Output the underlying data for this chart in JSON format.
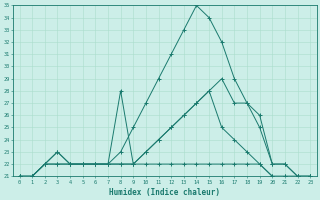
{
  "xlabel": "Humidex (Indice chaleur)",
  "bg_color": "#cceee8",
  "grid_color": "#aaddcc",
  "line_color": "#1a7a6e",
  "xlim": [
    -0.5,
    23.5
  ],
  "ylim": [
    21,
    35
  ],
  "xticks": [
    0,
    1,
    2,
    3,
    4,
    5,
    6,
    7,
    8,
    9,
    10,
    11,
    12,
    13,
    14,
    15,
    16,
    17,
    18,
    19,
    20,
    21,
    22,
    23
  ],
  "yticks": [
    21,
    22,
    23,
    24,
    25,
    26,
    27,
    28,
    29,
    30,
    31,
    32,
    33,
    34,
    35
  ],
  "series": [
    {
      "x": [
        0,
        1,
        2,
        3,
        4,
        5,
        6,
        7,
        8,
        9,
        10,
        11,
        12,
        13,
        14,
        15,
        16,
        17,
        18,
        19,
        20,
        21,
        22,
        23
      ],
      "y": [
        21,
        21,
        22,
        22,
        22,
        22,
        22,
        22,
        22,
        22,
        22,
        22,
        22,
        22,
        22,
        22,
        22,
        22,
        22,
        22,
        21,
        21,
        21,
        21
      ]
    },
    {
      "x": [
        0,
        1,
        2,
        3,
        4,
        5,
        6,
        7,
        8,
        9,
        10,
        11,
        12,
        13,
        14,
        15,
        16,
        17,
        18,
        19,
        20,
        21,
        22,
        23
      ],
      "y": [
        21,
        21,
        22,
        22,
        22,
        22,
        22,
        22,
        23,
        25,
        27,
        29,
        31,
        33,
        35,
        34,
        32,
        29,
        27,
        25,
        22,
        22,
        21,
        21
      ]
    },
    {
      "x": [
        0,
        1,
        2,
        3,
        4,
        5,
        6,
        7,
        8,
        9,
        10,
        11,
        12,
        13,
        14,
        15,
        16,
        17,
        18,
        19,
        20,
        21,
        22,
        23
      ],
      "y": [
        21,
        21,
        22,
        23,
        22,
        22,
        22,
        22,
        28,
        22,
        23,
        24,
        25,
        26,
        27,
        28,
        25,
        24,
        23,
        22,
        21,
        21,
        21,
        21
      ]
    },
    {
      "x": [
        0,
        1,
        2,
        3,
        4,
        5,
        6,
        7,
        8,
        9,
        10,
        11,
        12,
        13,
        14,
        15,
        16,
        17,
        18,
        19,
        20,
        21,
        22,
        23
      ],
      "y": [
        21,
        21,
        22,
        23,
        22,
        22,
        22,
        22,
        22,
        22,
        23,
        24,
        25,
        26,
        27,
        28,
        29,
        27,
        27,
        26,
        22,
        22,
        21,
        21
      ]
    }
  ]
}
